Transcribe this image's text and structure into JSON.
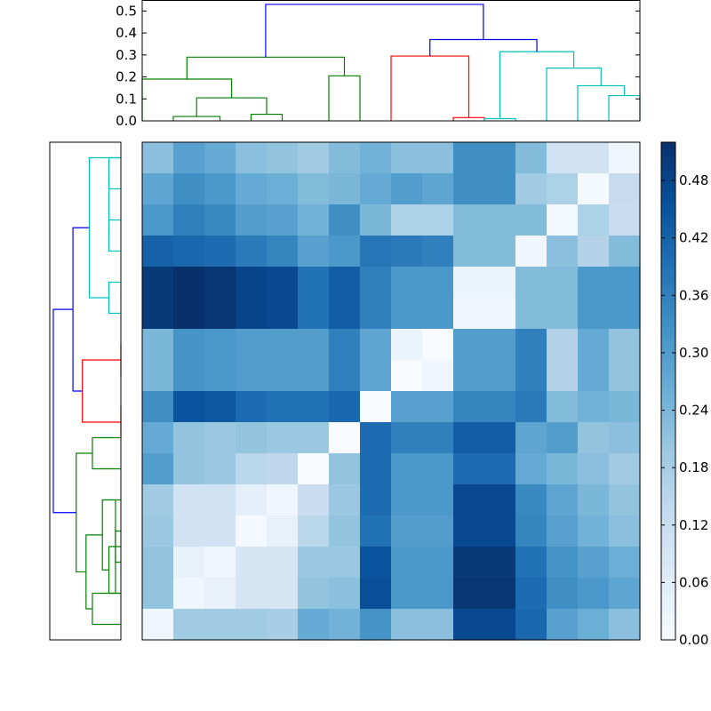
{
  "chart_data": [
    {
      "type": "dendrogram",
      "orientation": "top",
      "ylim": [
        0,
        0.55
      ],
      "yticks": [
        "0.0",
        "0.1",
        "0.2",
        "0.3",
        "0.4",
        "0.5"
      ],
      "ytick_values": [
        0,
        0.1,
        0.2,
        0.3,
        0.4,
        0.5
      ],
      "leaf_count": 16,
      "links": [
        {
          "x": [
            0.5,
            0.5,
            2.0,
            2.0
          ],
          "y": [
            0.0,
            0.02,
            0.02,
            0.0
          ],
          "color": "#008000"
        },
        {
          "x": [
            3.0,
            3.0,
            4.0,
            4.0
          ],
          "y": [
            0.0,
            0.03,
            0.03,
            0.0
          ],
          "color": "#008000"
        },
        {
          "x": [
            1.25,
            1.25,
            3.5,
            3.5
          ],
          "y": [
            0.02,
            0.105,
            0.105,
            0.03
          ],
          "color": "#008000"
        },
        {
          "x": [
            -0.5,
            -0.5,
            2.375,
            2.375
          ],
          "y": [
            0.0,
            0.19,
            0.19,
            0.105
          ],
          "color": "#008000"
        },
        {
          "x": [
            5.5,
            5.5,
            6.5,
            6.5
          ],
          "y": [
            0.0,
            0.205,
            0.205,
            0.0
          ],
          "color": "#008000"
        },
        {
          "x": [
            0.9375,
            0.9375,
            6.0,
            6.0
          ],
          "y": [
            0.19,
            0.29,
            0.29,
            0.205
          ],
          "color": "#008000"
        },
        {
          "x": [
            9.5,
            9.5,
            10.5,
            10.5
          ],
          "y": [
            0.0,
            0.015,
            0.015,
            0.0
          ],
          "color": "#ff0000"
        },
        {
          "x": [
            7.5,
            7.5,
            10.0,
            10.0
          ],
          "y": [
            0.0,
            0.295,
            0.295,
            0.015
          ],
          "color": "#ff0000"
        },
        {
          "x": [
            10.5,
            10.5,
            11.5,
            11.5
          ],
          "y": [
            0.0,
            0.01,
            0.01,
            0.0
          ],
          "color": "#00bfbf"
        },
        {
          "x": [
            14.5,
            14.5,
            15.5,
            15.5
          ],
          "y": [
            0.0,
            0.115,
            0.115,
            0.0
          ],
          "color": "#00bfbf"
        },
        {
          "x": [
            13.5,
            13.5,
            15.0,
            15.0
          ],
          "y": [
            0.0,
            0.16,
            0.16,
            0.115
          ],
          "color": "#00bfbf"
        },
        {
          "x": [
            12.5,
            12.5,
            14.25,
            14.25
          ],
          "y": [
            0.0,
            0.24,
            0.24,
            0.16
          ],
          "color": "#00bfbf"
        },
        {
          "x": [
            11.0,
            11.0,
            13.375,
            13.375
          ],
          "y": [
            0.01,
            0.315,
            0.315,
            0.24
          ],
          "color": "#00bfbf"
        },
        {
          "x": [
            8.75,
            8.75,
            12.1875,
            12.1875
          ],
          "y": [
            0.295,
            0.37,
            0.37,
            0.315
          ],
          "color": "#0000ff"
        },
        {
          "x": [
            3.46875,
            3.46875,
            10.46875,
            10.46875
          ],
          "y": [
            0.29,
            0.53,
            0.53,
            0.37
          ],
          "color": "#0000ff"
        }
      ]
    },
    {
      "type": "dendrogram",
      "orientation": "left",
      "leaf_count": 16,
      "links": [
        {
          "x": [
            0.0,
            0.0365,
            0.0365,
            0.0
          ],
          "y": [
            0.0,
            0.0,
            1.0,
            1.0
          ],
          "color": "#00bfbf"
        },
        {
          "x": [
            0.0,
            0.0365,
            0.0365,
            0.0
          ],
          "y": [
            2.0,
            2.0,
            3.0,
            3.0
          ],
          "color": "#00bfbf"
        },
        {
          "x": [
            0.0,
            0.0365,
            0.0365,
            0.0
          ],
          "y": [
            4.0,
            4.0,
            5.0,
            5.0
          ],
          "color": "#00bfbf"
        },
        {
          "x": [
            0.0365,
            0.0365,
            0.0365,
            0.0365
          ],
          "y": [
            0.5,
            0.5,
            2.5,
            2.5
          ],
          "color": "#00bfbf"
        },
        {
          "x": [
            0.0,
            0.0965,
            0.0965,
            0.0365
          ],
          "y": [
            0.0,
            0.0,
            4.5,
            4.5
          ],
          "color": "#00bfbf"
        },
        {
          "x": [
            0.0,
            0.0,
            0.0,
            0.0
          ],
          "y": [
            6.0,
            6.0,
            7.0,
            7.0
          ],
          "color": "#ff0000"
        },
        {
          "x": [
            0.0,
            0.0,
            0.0,
            0.0
          ],
          "y": [
            8.0,
            8.0,
            9.0,
            9.0
          ],
          "color": "#ff0000"
        },
        {
          "x": [
            0.0,
            0.1177,
            0.1177,
            0.0
          ],
          "y": [
            6.5,
            6.5,
            8.5,
            8.5
          ],
          "color": "#ff0000"
        },
        {
          "x": [
            0.0,
            0.0871,
            0.0871,
            0.0
          ],
          "y": [
            9.0,
            9.0,
            10.0,
            10.0
          ],
          "color": "#008000"
        },
        {
          "x": [
            0.0,
            0.0165,
            0.0165,
            0.0
          ],
          "y": [
            12.0,
            12.0,
            13.0,
            13.0
          ],
          "color": "#008000"
        },
        {
          "x": [
            0.0,
            0.0165,
            0.0165,
            0.0
          ],
          "y": [
            11.0,
            11.0,
            14.0,
            14.0
          ],
          "color": "#008000"
        },
        {
          "x": [
            0.0,
            0.0365,
            0.0365,
            0.0165
          ],
          "y": [
            12.5,
            12.5,
            14.0,
            14.0
          ],
          "color": "#008000"
        },
        {
          "x": [
            0.0165,
            0.0565,
            0.0565,
            0.0365
          ],
          "y": [
            11.0,
            11.0,
            13.25,
            13.25
          ],
          "color": "#008000"
        },
        {
          "x": [
            0.0,
            0.0871,
            0.0871,
            0.0
          ],
          "y": [
            14.0,
            14.0,
            15.0,
            15.0
          ],
          "color": "#008000"
        },
        {
          "x": [
            0.0565,
            0.1065,
            0.1065,
            0.0871
          ],
          "y": [
            12.125,
            12.125,
            14.5,
            14.5
          ],
          "color": "#008000"
        },
        {
          "x": [
            0.0871,
            0.1365,
            0.1365,
            0.1065
          ],
          "y": [
            9.5,
            9.5,
            13.3125,
            13.3125
          ],
          "color": "#008000"
        },
        {
          "x": [
            0.0965,
            0.1465,
            0.1465,
            0.1177
          ],
          "y": [
            2.25,
            2.25,
            7.5,
            7.5
          ],
          "color": "#0000ff"
        },
        {
          "x": [
            0.1465,
            0.2065,
            0.2065,
            0.1365
          ],
          "y": [
            4.875,
            4.875,
            11.40625,
            11.40625
          ],
          "color": "#0000ff"
        }
      ]
    },
    {
      "type": "heatmap",
      "colormap": "Blues",
      "vmin": 0.0,
      "vmax": 0.52,
      "colorbar_ticks": [
        "0.00",
        "0.06",
        "0.12",
        "0.18",
        "0.24",
        "0.30",
        "0.36",
        "0.42",
        "0.48"
      ],
      "colorbar_tick_values": [
        0.0,
        0.06,
        0.12,
        0.18,
        0.24,
        0.3,
        0.36,
        0.42,
        0.48
      ],
      "rows": 16,
      "cols": 16,
      "values": [
        [
          0.22,
          0.29,
          0.27,
          0.22,
          0.21,
          0.19,
          0.23,
          0.25,
          0.22,
          0.22,
          0.33,
          0.33,
          0.23,
          0.1,
          0.1,
          0.02
        ],
        [
          0.28,
          0.33,
          0.31,
          0.27,
          0.26,
          0.23,
          0.24,
          0.27,
          0.3,
          0.28,
          0.33,
          0.33,
          0.19,
          0.17,
          0.01,
          0.13
        ],
        [
          0.31,
          0.36,
          0.34,
          0.3,
          0.29,
          0.25,
          0.33,
          0.24,
          0.17,
          0.17,
          0.23,
          0.23,
          0.23,
          0.01,
          0.17,
          0.12
        ],
        [
          0.42,
          0.41,
          0.4,
          0.37,
          0.35,
          0.29,
          0.31,
          0.38,
          0.37,
          0.36,
          0.23,
          0.23,
          0.02,
          0.22,
          0.16,
          0.23
        ],
        [
          0.5,
          0.52,
          0.51,
          0.48,
          0.47,
          0.39,
          0.43,
          0.36,
          0.31,
          0.31,
          0.03,
          0.03,
          0.23,
          0.23,
          0.31,
          0.31
        ],
        [
          0.5,
          0.52,
          0.51,
          0.48,
          0.47,
          0.39,
          0.43,
          0.36,
          0.31,
          0.31,
          0.02,
          0.02,
          0.23,
          0.23,
          0.31,
          0.31
        ],
        [
          0.24,
          0.32,
          0.31,
          0.3,
          0.3,
          0.3,
          0.36,
          0.28,
          0.03,
          0.0,
          0.3,
          0.3,
          0.36,
          0.16,
          0.27,
          0.21
        ],
        [
          0.24,
          0.32,
          0.31,
          0.3,
          0.3,
          0.3,
          0.36,
          0.28,
          0.0,
          0.02,
          0.3,
          0.3,
          0.36,
          0.16,
          0.27,
          0.21
        ],
        [
          0.33,
          0.45,
          0.44,
          0.4,
          0.39,
          0.39,
          0.41,
          0.0,
          0.29,
          0.29,
          0.35,
          0.35,
          0.37,
          0.23,
          0.25,
          0.24
        ],
        [
          0.27,
          0.21,
          0.2,
          0.21,
          0.2,
          0.2,
          0.0,
          0.4,
          0.36,
          0.36,
          0.43,
          0.43,
          0.28,
          0.3,
          0.21,
          0.22
        ],
        [
          0.3,
          0.21,
          0.2,
          0.15,
          0.14,
          0.0,
          0.21,
          0.4,
          0.31,
          0.31,
          0.4,
          0.4,
          0.27,
          0.24,
          0.22,
          0.19
        ],
        [
          0.19,
          0.1,
          0.1,
          0.05,
          0.02,
          0.12,
          0.2,
          0.4,
          0.31,
          0.31,
          0.47,
          0.47,
          0.34,
          0.28,
          0.24,
          0.21
        ],
        [
          0.2,
          0.1,
          0.1,
          0.01,
          0.04,
          0.15,
          0.21,
          0.39,
          0.3,
          0.3,
          0.47,
          0.47,
          0.35,
          0.29,
          0.25,
          0.22
        ],
        [
          0.21,
          0.04,
          0.02,
          0.09,
          0.09,
          0.2,
          0.2,
          0.45,
          0.31,
          0.31,
          0.5,
          0.5,
          0.39,
          0.32,
          0.29,
          0.26
        ],
        [
          0.21,
          0.02,
          0.04,
          0.09,
          0.09,
          0.21,
          0.22,
          0.46,
          0.31,
          0.31,
          0.51,
          0.51,
          0.4,
          0.33,
          0.31,
          0.28
        ],
        [
          0.02,
          0.19,
          0.19,
          0.19,
          0.18,
          0.27,
          0.25,
          0.32,
          0.22,
          0.22,
          0.47,
          0.47,
          0.41,
          0.29,
          0.26,
          0.22
        ]
      ]
    }
  ]
}
